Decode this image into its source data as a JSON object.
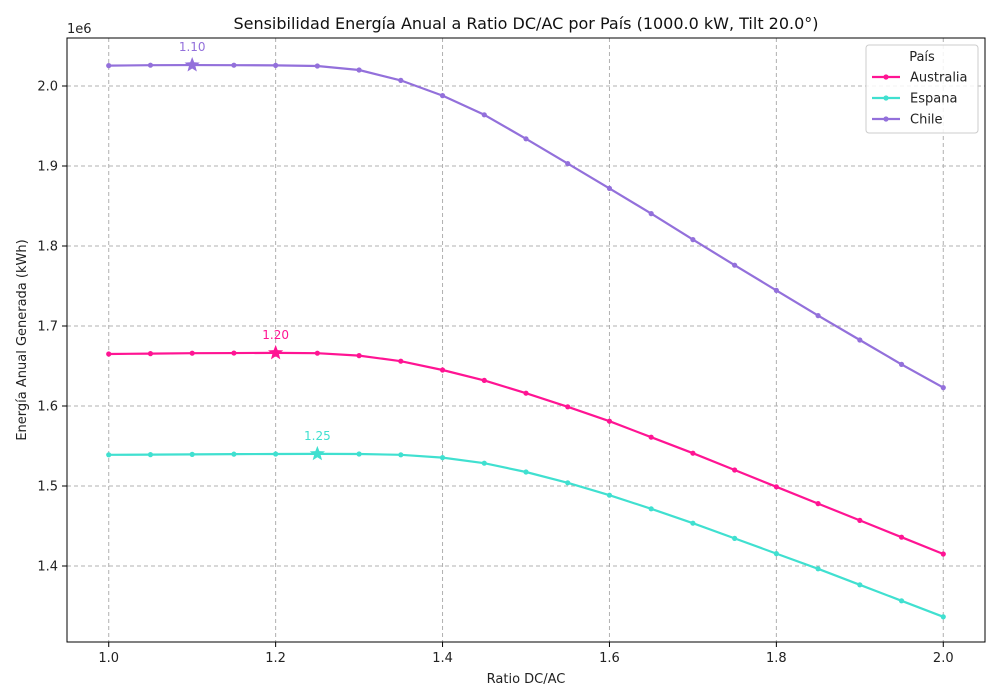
{
  "chart_data": {
    "type": "line",
    "title": "Sensibilidad Energía Anual a Ratio DC/AC por País (1000.0 kW, Tilt 20.0°)",
    "xlabel": "Ratio DC/AC",
    "ylabel": "Energía Anual Generada (kWh)",
    "y_offset_label": "1e6",
    "xlim": [
      0.95,
      2.05
    ],
    "ylim": [
      1305000,
      2060000
    ],
    "x_ticks": [
      1.0,
      1.2,
      1.4,
      1.6,
      1.8,
      2.0
    ],
    "x_tick_labels": [
      "1.0",
      "1.2",
      "1.4",
      "1.6",
      "1.8",
      "2.0"
    ],
    "y_ticks": [
      1400000,
      1500000,
      1600000,
      1700000,
      1800000,
      1900000,
      2000000
    ],
    "y_tick_labels": [
      "1.4",
      "1.5",
      "1.6",
      "1.7",
      "1.8",
      "1.9",
      "2.0"
    ],
    "grid": true,
    "legend": {
      "title": "País",
      "position": "top-right"
    },
    "x": [
      1.0,
      1.05,
      1.1,
      1.15,
      1.2,
      1.25,
      1.3,
      1.35,
      1.4,
      1.45,
      1.5,
      1.55,
      1.6,
      1.65,
      1.7,
      1.75,
      1.8,
      1.85,
      1.9,
      1.95,
      2.0
    ],
    "series": [
      {
        "name": "Australia",
        "color": "#ff1493",
        "values": [
          1665000,
          1665500,
          1666000,
          1666200,
          1666400,
          1666000,
          1663000,
          1656000,
          1645000,
          1632000,
          1616000,
          1599000,
          1581000,
          1561000,
          1541000,
          1520000,
          1499000,
          1478000,
          1457000,
          1436000,
          1415000
        ],
        "optimum": {
          "x": 1.2,
          "y": 1666400,
          "label": "1.20"
        }
      },
      {
        "name": "Espana",
        "color": "#40e0d0",
        "values": [
          1539000,
          1539200,
          1539500,
          1539800,
          1540000,
          1540200,
          1540000,
          1539000,
          1535500,
          1528500,
          1517500,
          1504000,
          1488500,
          1471500,
          1453500,
          1434500,
          1415500,
          1396500,
          1376500,
          1356500,
          1336500
        ],
        "optimum": {
          "x": 1.25,
          "y": 1540200,
          "label": "1.25"
        }
      },
      {
        "name": "Chile",
        "color": "#9370db",
        "values": [
          2025500,
          2026000,
          2026200,
          2026000,
          2025800,
          2025000,
          2020000,
          2007000,
          1988000,
          1964000,
          1934000,
          1903000,
          1872000,
          1840500,
          1808000,
          1776000,
          1744500,
          1713000,
          1682500,
          1652000,
          1623000
        ],
        "optimum": {
          "x": 1.1,
          "y": 2026200,
          "label": "1.10"
        }
      }
    ]
  }
}
